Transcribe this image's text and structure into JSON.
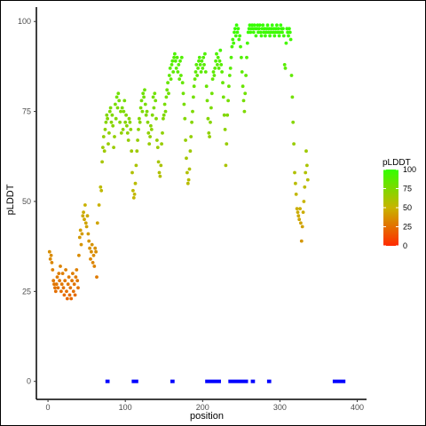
{
  "chart_data": {
    "type": "scatter",
    "title": "",
    "xlabel": "position",
    "ylabel": "pLDDT",
    "xlim": [
      -15,
      412
    ],
    "ylim": [
      -5,
      104
    ],
    "xticks": [
      0,
      100,
      200,
      300,
      400
    ],
    "yticks": [
      0,
      25,
      50,
      75,
      100
    ],
    "grid": false,
    "legend": {
      "title": "pLDDT",
      "placement": "right",
      "ticks": [
        0,
        25,
        50,
        75,
        100
      ],
      "colors": {
        "low": "#ff2a00",
        "mid": "#c8b400",
        "high": "#33ff00"
      }
    },
    "points_color_scale": "pLDDT",
    "points": [
      [
        2,
        36
      ],
      [
        3,
        34
      ],
      [
        4,
        35
      ],
      [
        5,
        33
      ],
      [
        6,
        31
      ],
      [
        7,
        28
      ],
      [
        8,
        27
      ],
      [
        9,
        26
      ],
      [
        10,
        25
      ],
      [
        11,
        27
      ],
      [
        12,
        29
      ],
      [
        13,
        26
      ],
      [
        14,
        30
      ],
      [
        15,
        28
      ],
      [
        16,
        32
      ],
      [
        17,
        25
      ],
      [
        18,
        27
      ],
      [
        19,
        30
      ],
      [
        20,
        26
      ],
      [
        21,
        24
      ],
      [
        22,
        28
      ],
      [
        23,
        31
      ],
      [
        24,
        25
      ],
      [
        25,
        23
      ],
      [
        26,
        27
      ],
      [
        27,
        29
      ],
      [
        28,
        24
      ],
      [
        29,
        26
      ],
      [
        30,
        23
      ],
      [
        31,
        28
      ],
      [
        32,
        30
      ],
      [
        33,
        25
      ],
      [
        34,
        27
      ],
      [
        35,
        24
      ],
      [
        36,
        29
      ],
      [
        37,
        31
      ],
      [
        38,
        28
      ],
      [
        39,
        26
      ],
      [
        40,
        35
      ],
      [
        41,
        40
      ],
      [
        42,
        42
      ],
      [
        43,
        38
      ],
      [
        44,
        41
      ],
      [
        45,
        46
      ],
      [
        46,
        47
      ],
      [
        47,
        45
      ],
      [
        48,
        49
      ],
      [
        49,
        44
      ],
      [
        50,
        43
      ],
      [
        51,
        46
      ],
      [
        52,
        41
      ],
      [
        53,
        39
      ],
      [
        54,
        37
      ],
      [
        55,
        34
      ],
      [
        56,
        36
      ],
      [
        57,
        38
      ],
      [
        58,
        33
      ],
      [
        59,
        35
      ],
      [
        60,
        32
      ],
      [
        61,
        37
      ],
      [
        62,
        36
      ],
      [
        63,
        29
      ],
      [
        64,
        44
      ],
      [
        66,
        49
      ],
      [
        68,
        54
      ],
      [
        69,
        53
      ],
      [
        70,
        61
      ],
      [
        71,
        65
      ],
      [
        72,
        68
      ],
      [
        73,
        64
      ],
      [
        74,
        70
      ],
      [
        75,
        72
      ],
      [
        76,
        74
      ],
      [
        77,
        73
      ],
      [
        78,
        66
      ],
      [
        79,
        69
      ],
      [
        80,
        75
      ],
      [
        81,
        76
      ],
      [
        82,
        72
      ],
      [
        83,
        74
      ],
      [
        84,
        71
      ],
      [
        85,
        65
      ],
      [
        86,
        68
      ],
      [
        87,
        77
      ],
      [
        88,
        73
      ],
      [
        89,
        79
      ],
      [
        90,
        76
      ],
      [
        91,
        80
      ],
      [
        92,
        78
      ],
      [
        93,
        72
      ],
      [
        94,
        75
      ],
      [
        95,
        69
      ],
      [
        96,
        76
      ],
      [
        97,
        70
      ],
      [
        98,
        75
      ],
      [
        99,
        78
      ],
      [
        100,
        72
      ],
      [
        101,
        74
      ],
      [
        102,
        71
      ],
      [
        103,
        69
      ],
      [
        104,
        67
      ],
      [
        105,
        73
      ],
      [
        106,
        72
      ],
      [
        107,
        70
      ],
      [
        108,
        64
      ],
      [
        109,
        58
      ],
      [
        110,
        53
      ],
      [
        111,
        51
      ],
      [
        112,
        52
      ],
      [
        113,
        55
      ],
      [
        114,
        60
      ],
      [
        115,
        64
      ],
      [
        116,
        67
      ],
      [
        117,
        70
      ],
      [
        118,
        73
      ],
      [
        119,
        72
      ],
      [
        120,
        76
      ],
      [
        121,
        78
      ],
      [
        122,
        75
      ],
      [
        123,
        80
      ],
      [
        124,
        79
      ],
      [
        125,
        81
      ],
      [
        126,
        77
      ],
      [
        127,
        74
      ],
      [
        128,
        75
      ],
      [
        129,
        72
      ],
      [
        130,
        69
      ],
      [
        131,
        66
      ],
      [
        132,
        68
      ],
      [
        133,
        71
      ],
      [
        134,
        70
      ],
      [
        135,
        74
      ],
      [
        136,
        79
      ],
      [
        137,
        76
      ],
      [
        138,
        80
      ],
      [
        139,
        78
      ],
      [
        140,
        73
      ],
      [
        141,
        67
      ],
      [
        142,
        65
      ],
      [
        143,
        61
      ],
      [
        144,
        58
      ],
      [
        145,
        57
      ],
      [
        146,
        60
      ],
      [
        147,
        66
      ],
      [
        148,
        69
      ],
      [
        149,
        73
      ],
      [
        150,
        74
      ],
      [
        151,
        77
      ],
      [
        152,
        75
      ],
      [
        153,
        79
      ],
      [
        154,
        81
      ],
      [
        155,
        83
      ],
      [
        156,
        80
      ],
      [
        157,
        85
      ],
      [
        158,
        87
      ],
      [
        159,
        84
      ],
      [
        160,
        88
      ],
      [
        161,
        89
      ],
      [
        162,
        86
      ],
      [
        163,
        90
      ],
      [
        164,
        91
      ],
      [
        165,
        89
      ],
      [
        166,
        87
      ],
      [
        167,
        90
      ],
      [
        168,
        86
      ],
      [
        169,
        88
      ],
      [
        170,
        84
      ],
      [
        171,
        89
      ],
      [
        172,
        85
      ],
      [
        173,
        90
      ],
      [
        174,
        83
      ],
      [
        175,
        80
      ],
      [
        176,
        77
      ],
      [
        177,
        73
      ],
      [
        178,
        67
      ],
      [
        179,
        62
      ],
      [
        180,
        58
      ],
      [
        181,
        55
      ],
      [
        182,
        56
      ],
      [
        183,
        59
      ],
      [
        184,
        64
      ],
      [
        185,
        68
      ],
      [
        186,
        72
      ],
      [
        187,
        75
      ],
      [
        188,
        79
      ],
      [
        189,
        82
      ],
      [
        190,
        84
      ],
      [
        191,
        86
      ],
      [
        192,
        88
      ],
      [
        193,
        85
      ],
      [
        194,
        87
      ],
      [
        195,
        89
      ],
      [
        196,
        90
      ],
      [
        197,
        88
      ],
      [
        198,
        86
      ],
      [
        199,
        89
      ],
      [
        200,
        87
      ],
      [
        201,
        90
      ],
      [
        202,
        88
      ],
      [
        203,
        91
      ],
      [
        204,
        86
      ],
      [
        205,
        82
      ],
      [
        206,
        78
      ],
      [
        207,
        73
      ],
      [
        208,
        69
      ],
      [
        209,
        68
      ],
      [
        210,
        72
      ],
      [
        211,
        76
      ],
      [
        212,
        80
      ],
      [
        213,
        84
      ],
      [
        214,
        86
      ],
      [
        215,
        85
      ],
      [
        216,
        87
      ],
      [
        217,
        89
      ],
      [
        218,
        91
      ],
      [
        219,
        88
      ],
      [
        220,
        90
      ],
      [
        221,
        87
      ],
      [
        222,
        89
      ],
      [
        223,
        92
      ],
      [
        224,
        88
      ],
      [
        225,
        86
      ],
      [
        226,
        83
      ],
      [
        227,
        79
      ],
      [
        228,
        74
      ],
      [
        229,
        70
      ],
      [
        230,
        60
      ],
      [
        231,
        66
      ],
      [
        232,
        74
      ],
      [
        233,
        78
      ],
      [
        234,
        82
      ],
      [
        235,
        85
      ],
      [
        236,
        87
      ],
      [
        237,
        90
      ],
      [
        238,
        93
      ],
      [
        239,
        95
      ],
      [
        240,
        94
      ],
      [
        241,
        97
      ],
      [
        242,
        98
      ],
      [
        243,
        96
      ],
      [
        244,
        99
      ],
      [
        245,
        97
      ],
      [
        246,
        98
      ],
      [
        247,
        95
      ],
      [
        248,
        96
      ],
      [
        249,
        93
      ],
      [
        250,
        90
      ],
      [
        251,
        86
      ],
      [
        252,
        82
      ],
      [
        253,
        78
      ],
      [
        254,
        75
      ],
      [
        255,
        80
      ],
      [
        256,
        85
      ],
      [
        257,
        90
      ],
      [
        258,
        94
      ],
      [
        259,
        97
      ],
      [
        260,
        98
      ],
      [
        261,
        99
      ],
      [
        262,
        97
      ],
      [
        263,
        98
      ],
      [
        264,
        99
      ],
      [
        265,
        98
      ],
      [
        266,
        97
      ],
      [
        267,
        99
      ],
      [
        268,
        98
      ],
      [
        269,
        96
      ],
      [
        270,
        98
      ],
      [
        271,
        99
      ],
      [
        272,
        97
      ],
      [
        273,
        98
      ],
      [
        274,
        99
      ],
      [
        275,
        97
      ],
      [
        276,
        96
      ],
      [
        277,
        98
      ],
      [
        278,
        99
      ],
      [
        279,
        97
      ],
      [
        280,
        98
      ],
      [
        281,
        96
      ],
      [
        282,
        97
      ],
      [
        283,
        98
      ],
      [
        284,
        99
      ],
      [
        285,
        97
      ],
      [
        286,
        98
      ],
      [
        287,
        96
      ],
      [
        288,
        97
      ],
      [
        289,
        98
      ],
      [
        290,
        99
      ],
      [
        291,
        97
      ],
      [
        292,
        98
      ],
      [
        293,
        96
      ],
      [
        294,
        97
      ],
      [
        295,
        98
      ],
      [
        296,
        99
      ],
      [
        297,
        97
      ],
      [
        298,
        98
      ],
      [
        299,
        96
      ],
      [
        300,
        97
      ],
      [
        301,
        99
      ],
      [
        302,
        98
      ],
      [
        303,
        97
      ],
      [
        304,
        98
      ],
      [
        305,
        96
      ],
      [
        306,
        88
      ],
      [
        307,
        87
      ],
      [
        308,
        94
      ],
      [
        309,
        98
      ],
      [
        310,
        97
      ],
      [
        311,
        96
      ],
      [
        312,
        98
      ],
      [
        313,
        97
      ],
      [
        314,
        95
      ],
      [
        315,
        85
      ],
      [
        316,
        79
      ],
      [
        317,
        72
      ],
      [
        318,
        66
      ],
      [
        319,
        58
      ],
      [
        320,
        55
      ],
      [
        321,
        52
      ],
      [
        322,
        48
      ],
      [
        323,
        47
      ],
      [
        324,
        46
      ],
      [
        325,
        45
      ],
      [
        326,
        48
      ],
      [
        327,
        44
      ],
      [
        328,
        39
      ],
      [
        329,
        43
      ],
      [
        330,
        47
      ],
      [
        331,
        50
      ],
      [
        332,
        54
      ],
      [
        333,
        58
      ],
      [
        334,
        64
      ],
      [
        335,
        60
      ],
      [
        336,
        56
      ]
    ],
    "gap_markers_y": 0,
    "gap_markers_color": "#0000ff",
    "gap_markers": [
      [
        76,
        78
      ],
      [
        110,
        115
      ],
      [
        160,
        162
      ],
      [
        205,
        222
      ],
      [
        235,
        257
      ],
      [
        264,
        266
      ],
      [
        285,
        287
      ],
      [
        370,
        383
      ]
    ]
  }
}
